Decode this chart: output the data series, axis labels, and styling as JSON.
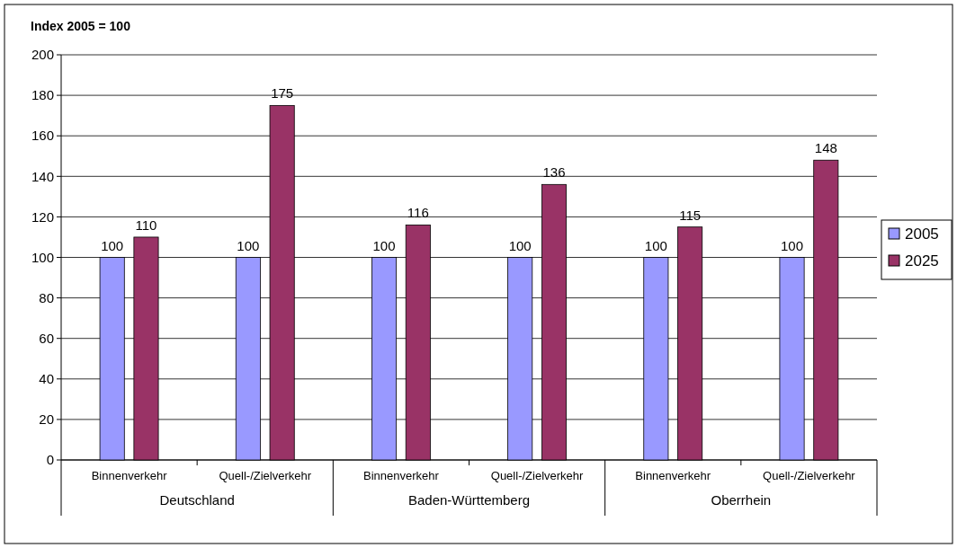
{
  "chart_data": {
    "type": "bar",
    "ylabel": "Index 2005 = 100",
    "categories": [
      "Binnenverkehr",
      "Quell-/Zielverkehr",
      "Binnenverkehr",
      "Quell-/Zielverkehr",
      "Binnenverkehr",
      "Quell-/Zielverkehr"
    ],
    "annotations": [
      "Deutschland",
      "Baden-Württemberg",
      "Oberrhein"
    ],
    "series": [
      {
        "name": "2005",
        "color": "#9999ff",
        "values": [
          100,
          100,
          100,
          100,
          100,
          100
        ]
      },
      {
        "name": "2025",
        "color": "#993366",
        "values": [
          110,
          175,
          116,
          136,
          115,
          148
        ]
      }
    ],
    "ylim": [
      0,
      200
    ],
    "yticks": [
      0,
      20,
      40,
      60,
      80,
      100,
      120,
      140,
      160,
      180,
      200
    ],
    "grid": "y",
    "legend": "right",
    "data_labels": true
  }
}
